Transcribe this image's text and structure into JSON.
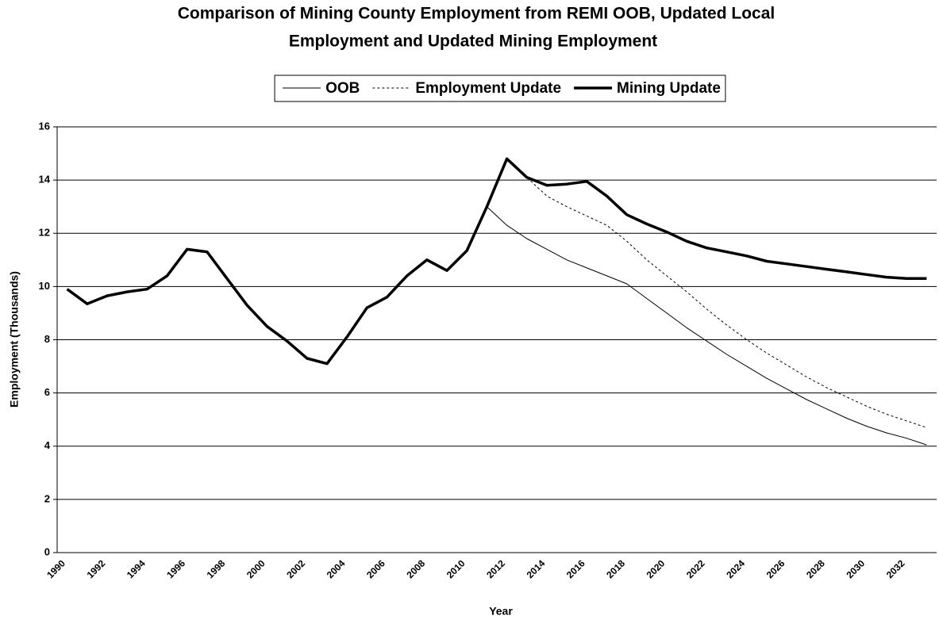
{
  "chart_data": {
    "type": "line",
    "title": "Comparison of Mining County Employment from REMI OOB, Updated Local",
    "subtitle": "Employment and Updated Mining Employment",
    "x_label": "Year",
    "y_label": "Employment (Thousands)",
    "categories": [
      "1990",
      null,
      "1992",
      null,
      "1994",
      null,
      "1996",
      null,
      "1998",
      null,
      "2000",
      null,
      "2002",
      null,
      "2004",
      null,
      "2006",
      null,
      "2008",
      null,
      "2010",
      null,
      "2012",
      null,
      "2014",
      null,
      "2016",
      null,
      "2018",
      null,
      "2020",
      null,
      "2022",
      null,
      "2024",
      null,
      "2026",
      null,
      "2028",
      null,
      "2030",
      null,
      "2032",
      null
    ],
    "series": [
      {
        "name": "OOB",
        "color": "#000000",
        "width": 1,
        "dash": false,
        "values": [
          9.9,
          9.35,
          9.65,
          9.8,
          9.9,
          10.4,
          11.4,
          11.3,
          10.3,
          9.3,
          8.5,
          7.95,
          7.3,
          7.1,
          8.1,
          9.2,
          9.6,
          10.4,
          11.0,
          10.6,
          11.35,
          13.0,
          12.3,
          11.8,
          11.4,
          11.0,
          10.7,
          10.4,
          10.1,
          9.55,
          9.0,
          8.45,
          7.95,
          7.45,
          7.0,
          6.55,
          6.15,
          5.75,
          5.4,
          5.05,
          4.75,
          4.5,
          4.3,
          4.05
        ]
      },
      {
        "name": "Employment Update",
        "color": "#000000",
        "width": 1,
        "dash": true,
        "values": [
          9.9,
          9.35,
          9.65,
          9.8,
          9.9,
          10.4,
          11.4,
          11.3,
          10.3,
          9.3,
          8.5,
          7.95,
          7.3,
          7.1,
          8.1,
          9.2,
          9.6,
          10.4,
          11.0,
          10.6,
          11.35,
          13.0,
          14.8,
          14.1,
          13.4,
          13.0,
          12.65,
          12.3,
          11.7,
          11.0,
          10.4,
          9.8,
          9.15,
          8.55,
          8.0,
          7.5,
          7.05,
          6.6,
          6.2,
          5.85,
          5.5,
          5.2,
          4.95,
          4.7
        ]
      },
      {
        "name": "Mining Update",
        "color": "#000000",
        "width": 3.5,
        "dash": false,
        "values": [
          9.9,
          9.35,
          9.65,
          9.8,
          9.9,
          10.4,
          11.4,
          11.3,
          10.3,
          9.3,
          8.5,
          7.95,
          7.3,
          7.1,
          8.1,
          9.2,
          9.6,
          10.4,
          11.0,
          10.6,
          11.35,
          13.0,
          14.8,
          14.1,
          13.8,
          13.85,
          13.95,
          13.4,
          12.7,
          12.35,
          12.05,
          11.7,
          11.45,
          11.3,
          11.15,
          10.95,
          10.85,
          10.75,
          10.65,
          10.55,
          10.45,
          10.35,
          10.3,
          10.3
        ]
      }
    ],
    "ylim": [
      0,
      16
    ],
    "yticks": [
      0,
      2,
      4,
      6,
      8,
      10,
      12,
      14,
      16
    ],
    "grid": true,
    "legend": "top"
  }
}
